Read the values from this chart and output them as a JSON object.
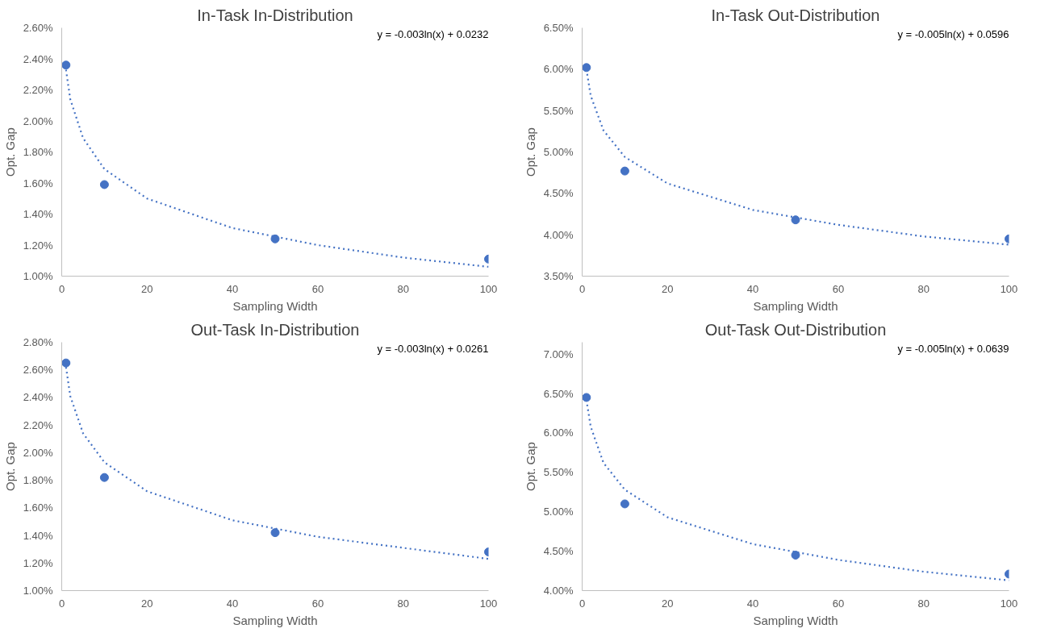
{
  "chart_data": [
    {
      "type": "scatter",
      "title": "In-Task In-Distribution",
      "xlabel": "Sampling Width",
      "ylabel": "Opt. Gap",
      "xlim": [
        0,
        100
      ],
      "xticks": [
        0,
        20,
        40,
        60,
        80,
        100
      ],
      "ylim": [
        1.0,
        2.6
      ],
      "yticks": [
        {
          "value": 1.0,
          "label": "1.00%"
        },
        {
          "value": 1.2,
          "label": "1.20%"
        },
        {
          "value": 1.4,
          "label": "1.40%"
        },
        {
          "value": 1.6,
          "label": "1.60%"
        },
        {
          "value": 1.8,
          "label": "1.80%"
        },
        {
          "value": 2.0,
          "label": "2.00%"
        },
        {
          "value": 2.2,
          "label": "2.20%"
        },
        {
          "value": 2.4,
          "label": "2.40%"
        },
        {
          "value": 2.6,
          "label": "2.60%"
        }
      ],
      "grid": false,
      "annotations": [
        "y = -0.003ln(x) + 0.0232"
      ],
      "series": [
        {
          "color": "#4472c4",
          "marker": "circle",
          "x": [
            1,
            10,
            50,
            100
          ],
          "values": [
            2.36,
            1.59,
            1.24,
            1.11
          ]
        },
        {
          "type": "line",
          "color": "#4472c4",
          "line_style": "dotted",
          "x": [
            1,
            2,
            5,
            10,
            20,
            40,
            60,
            80,
            100
          ],
          "values": [
            2.33,
            2.14,
            1.89,
            1.69,
            1.5,
            1.31,
            1.2,
            1.12,
            1.06
          ]
        }
      ]
    },
    {
      "type": "scatter",
      "title": "In-Task Out-Distribution",
      "xlabel": "Sampling Width",
      "ylabel": "Opt. Gap",
      "xlim": [
        0,
        100
      ],
      "xticks": [
        0,
        20,
        40,
        60,
        80,
        100
      ],
      "ylim": [
        3.5,
        6.5
      ],
      "yticks": [
        {
          "value": 3.5,
          "label": "3.50%"
        },
        {
          "value": 4.0,
          "label": "4.00%"
        },
        {
          "value": 4.5,
          "label": "4.50%"
        },
        {
          "value": 5.0,
          "label": "5.00%"
        },
        {
          "value": 5.5,
          "label": "5.50%"
        },
        {
          "value": 6.0,
          "label": "6.00%"
        },
        {
          "value": 6.5,
          "label": "6.50%"
        }
      ],
      "grid": false,
      "annotations": [
        "y = -0.005ln(x) + 0.0596"
      ],
      "series": [
        {
          "color": "#4472c4",
          "marker": "circle",
          "x": [
            1,
            10,
            50,
            100
          ],
          "values": [
            6.02,
            4.77,
            4.18,
            3.95
          ]
        },
        {
          "type": "line",
          "color": "#4472c4",
          "line_style": "dotted",
          "x": [
            1,
            2,
            5,
            10,
            20,
            40,
            60,
            80,
            100
          ],
          "values": [
            6.0,
            5.68,
            5.26,
            4.94,
            4.62,
            4.3,
            4.12,
            3.98,
            3.88
          ]
        }
      ]
    },
    {
      "type": "scatter",
      "title": "Out-Task In-Distribution",
      "xlabel": "Sampling Width",
      "ylabel": "Opt. Gap",
      "xlim": [
        0,
        100
      ],
      "xticks": [
        0,
        20,
        40,
        60,
        80,
        100
      ],
      "ylim": [
        1.0,
        2.8
      ],
      "yticks": [
        {
          "value": 1.0,
          "label": "1.00%"
        },
        {
          "value": 1.2,
          "label": "1.20%"
        },
        {
          "value": 1.4,
          "label": "1.40%"
        },
        {
          "value": 1.6,
          "label": "1.60%"
        },
        {
          "value": 1.8,
          "label": "1.80%"
        },
        {
          "value": 2.0,
          "label": "2.00%"
        },
        {
          "value": 2.2,
          "label": "2.20%"
        },
        {
          "value": 2.4,
          "label": "2.40%"
        },
        {
          "value": 2.6,
          "label": "2.60%"
        },
        {
          "value": 2.8,
          "label": "2.80%"
        }
      ],
      "grid": false,
      "annotations": [
        "y = -0.003ln(x) + 0.0261"
      ],
      "series": [
        {
          "color": "#4472c4",
          "marker": "circle",
          "x": [
            1,
            10,
            50,
            100
          ],
          "values": [
            2.65,
            1.82,
            1.42,
            1.28
          ]
        },
        {
          "type": "line",
          "color": "#4472c4",
          "line_style": "dotted",
          "x": [
            1,
            2,
            5,
            10,
            20,
            40,
            60,
            80,
            100
          ],
          "values": [
            2.62,
            2.41,
            2.14,
            1.93,
            1.72,
            1.51,
            1.39,
            1.31,
            1.23
          ]
        }
      ]
    },
    {
      "type": "scatter",
      "title": "Out-Task Out-Distribution",
      "xlabel": "Sampling Width",
      "ylabel": "Opt. Gap",
      "xlim": [
        0,
        100
      ],
      "xticks": [
        0,
        20,
        40,
        60,
        80,
        100
      ],
      "ylim": [
        4.0,
        7.15
      ],
      "yticks": [
        {
          "value": 4.0,
          "label": "4.00%"
        },
        {
          "value": 4.5,
          "label": "4.50%"
        },
        {
          "value": 5.0,
          "label": "5.00%"
        },
        {
          "value": 5.5,
          "label": "5.50%"
        },
        {
          "value": 6.0,
          "label": "6.00%"
        },
        {
          "value": 6.5,
          "label": "6.50%"
        },
        {
          "value": 7.0,
          "label": "7.00%"
        }
      ],
      "grid": false,
      "annotations": [
        "y = -0.005ln(x) + 0.0639"
      ],
      "series": [
        {
          "color": "#4472c4",
          "marker": "circle",
          "x": [
            1,
            10,
            50,
            100
          ],
          "values": [
            6.45,
            5.1,
            4.45,
            4.21
          ]
        },
        {
          "type": "line",
          "color": "#4472c4",
          "line_style": "dotted",
          "x": [
            1,
            2,
            5,
            10,
            20,
            40,
            60,
            80,
            100
          ],
          "values": [
            6.42,
            6.08,
            5.62,
            5.28,
            4.93,
            4.59,
            4.39,
            4.24,
            4.13
          ]
        }
      ]
    }
  ]
}
